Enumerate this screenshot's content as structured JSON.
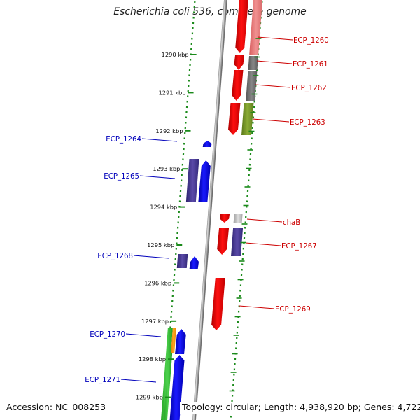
{
  "title": "Escherichia coli 536, complete genome",
  "footer": {
    "accession": "Accession: NC_008253",
    "summary": "Topology: circular; Length: 4,938,920 bp; Genes: 4,722"
  },
  "colors": {
    "backbone": "#8a8a8a",
    "ruler": "#1a8a1a",
    "forward_label": "#cc0000",
    "reverse_label": "#0000bb",
    "strand_forward": "#ff0000",
    "strand_reverse": "#0000ff",
    "cog_salmon": "#ef8080",
    "cog_gray": "#7a7a7a",
    "cog_olive": "#7d9a2c",
    "cog_light": "#c8c8c8",
    "cog_purple": "#4a3c90",
    "cog_green": "#33bb33",
    "cog_orange": "#ff9900"
  },
  "ruler_ticks": [
    {
      "label": "1290 kbp",
      "kbp": 1290
    },
    {
      "label": "1291 kbp",
      "kbp": 1291
    },
    {
      "label": "1292 kbp",
      "kbp": 1292
    },
    {
      "label": "1293 kbp",
      "kbp": 1293
    },
    {
      "label": "1294 kbp",
      "kbp": 1294
    },
    {
      "label": "1295 kbp",
      "kbp": 1295
    },
    {
      "label": "1296 kbp",
      "kbp": 1296
    },
    {
      "label": "1297 kbp",
      "kbp": 1297
    },
    {
      "label": "1298 kbp",
      "kbp": 1298
    },
    {
      "label": "1299 kbp",
      "kbp": 1299
    }
  ],
  "genes": [
    {
      "label": "ECP_1260",
      "strand": "forward"
    },
    {
      "label": "ECP_1261",
      "strand": "forward"
    },
    {
      "label": "ECP_1262",
      "strand": "forward"
    },
    {
      "label": "ECP_1263",
      "strand": "forward"
    },
    {
      "label": "ECP_1264",
      "strand": "reverse"
    },
    {
      "label": "ECP_1265",
      "strand": "reverse"
    },
    {
      "label": "chaB",
      "strand": "forward"
    },
    {
      "label": "ECP_1267",
      "strand": "forward"
    },
    {
      "label": "ECP_1268",
      "strand": "reverse"
    },
    {
      "label": "ECP_1269",
      "strand": "forward"
    },
    {
      "label": "ECP_1270",
      "strand": "reverse"
    },
    {
      "label": "ECP_1271",
      "strand": "reverse"
    }
  ]
}
